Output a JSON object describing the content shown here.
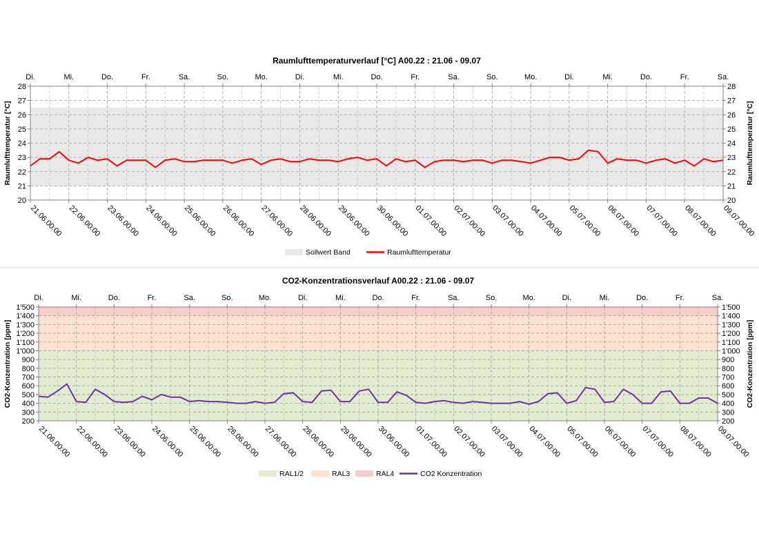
{
  "charts": [
    {
      "title": "Raumlufttemperaturverlauf [°C] A00.22 : 21.06 - 09.07",
      "ylabel": "Raumlufttemperatur [°C]",
      "weekday_labels": [
        "Di.",
        "Mi.",
        "Do.",
        "Fr.",
        "Sa.",
        "So.",
        "Mo.",
        "Di.",
        "Mi.",
        "Do.",
        "Fr.",
        "Sa.",
        "So.",
        "Mo.",
        "Di.",
        "Mi.",
        "Do.",
        "Fr.",
        "Sa."
      ],
      "y_tick_labels": [
        "20",
        "21",
        "22",
        "23",
        "24",
        "25",
        "26",
        "27",
        "28"
      ],
      "x_tick_labels": [
        "21.06.00:00",
        "22.06.00:00",
        "23.06.00:00",
        "24.06.00:00",
        "25.06.00:00",
        "26.06.00:00",
        "27.06.00:00",
        "28.06.00:00",
        "29.06.00:00",
        "30.06.00:00",
        "01.07.00:00",
        "02.07.00:00",
        "03.07.00:00",
        "04.07.00:00",
        "05.07.00:00",
        "06.07.00:00",
        "07.07.00:00",
        "08.07.00:00",
        "09.07.00:00"
      ],
      "legend": [
        "Sollwert Band",
        "Raumlufttemperatur"
      ],
      "colors": {
        "band": "#e9e9e9",
        "line": "#ff0000"
      }
    },
    {
      "title": "CO2-Konzentrationsverlauf A00.22 : 21.06 - 09.07",
      "ylabel": "CO2-Konzentration [ppm]",
      "weekday_labels": [
        "Di.",
        "Mi.",
        "Do.",
        "Fr.",
        "Sa.",
        "So.",
        "Mo.",
        "Di.",
        "Mi.",
        "Do.",
        "Fr.",
        "Sa.",
        "So.",
        "Mo.",
        "Di.",
        "Mi.",
        "Do.",
        "Fr.",
        "Sa."
      ],
      "y_tick_labels": [
        "200",
        "300",
        "400",
        "500",
        "600",
        "700",
        "800",
        "900",
        "1'000",
        "1'100",
        "1'200",
        "1'300",
        "1'400",
        "1'500"
      ],
      "x_tick_labels": [
        "21.06.00:00",
        "22.06.00:00",
        "23.06.00:00",
        "24.06.00:00",
        "25.06.00:00",
        "26.06.00:00",
        "27.06.00:00",
        "28.06.00:00",
        "29.06.00:00",
        "30.06.00:00",
        "01.07.00:00",
        "02.07.00:00",
        "03.07.00:00",
        "04.07.00:00",
        "05.07.00:00",
        "06.07.00:00",
        "07.07.00:00",
        "08.07.00:00",
        "09.07.00:00"
      ],
      "legend": [
        "RAL1/2",
        "RAL3",
        "RAL4",
        "CO2 Konzentration"
      ],
      "colors": {
        "ral12": "#e2ecd1",
        "ral3": "#fde3cf",
        "ral4": "#f9cccc",
        "line": "#7030a0"
      }
    }
  ],
  "chart_data": [
    {
      "type": "line",
      "title": "Raumlufttemperaturverlauf [°C] A00.22 : 21.06 - 09.07",
      "ylabel": "Raumlufttemperatur [°C]",
      "ylim": [
        20,
        28
      ],
      "xlim": [
        "21.06.00:00",
        "09.07.00:00"
      ],
      "grid": true,
      "legend_position": "bottom",
      "bands": [
        {
          "name": "Sollwert Band",
          "from": 21,
          "to": 26.5
        }
      ],
      "series": [
        {
          "name": "Raumlufttemperatur",
          "x": [
            "21.06.00:00",
            "21.06.06:00",
            "21.06.12:00",
            "21.06.18:00",
            "22.06.00:00",
            "22.06.06:00",
            "22.06.12:00",
            "22.06.18:00",
            "23.06.00:00",
            "23.06.06:00",
            "23.06.12:00",
            "23.06.18:00",
            "24.06.00:00",
            "24.06.06:00",
            "24.06.12:00",
            "24.06.18:00",
            "25.06.00:00",
            "25.06.06:00",
            "25.06.12:00",
            "25.06.18:00",
            "26.06.00:00",
            "26.06.06:00",
            "26.06.12:00",
            "26.06.18:00",
            "27.06.00:00",
            "27.06.06:00",
            "27.06.12:00",
            "27.06.18:00",
            "28.06.00:00",
            "28.06.06:00",
            "28.06.12:00",
            "28.06.18:00",
            "29.06.00:00",
            "29.06.06:00",
            "29.06.12:00",
            "29.06.18:00",
            "30.06.00:00",
            "30.06.06:00",
            "30.06.12:00",
            "30.06.18:00",
            "01.07.00:00",
            "01.07.06:00",
            "01.07.12:00",
            "01.07.18:00",
            "02.07.00:00",
            "02.07.06:00",
            "02.07.12:00",
            "02.07.18:00",
            "03.07.00:00",
            "03.07.06:00",
            "03.07.12:00",
            "03.07.18:00",
            "04.07.00:00",
            "04.07.06:00",
            "04.07.12:00",
            "04.07.18:00",
            "05.07.00:00",
            "05.07.06:00",
            "05.07.12:00",
            "05.07.18:00",
            "06.07.00:00",
            "06.07.06:00",
            "06.07.12:00",
            "06.07.18:00",
            "07.07.00:00",
            "07.07.06:00",
            "07.07.12:00",
            "07.07.18:00",
            "08.07.00:00",
            "08.07.06:00",
            "08.07.12:00",
            "08.07.18:00",
            "09.07.00:00"
          ],
          "y": [
            22.4,
            22.9,
            22.9,
            23.4,
            22.8,
            22.6,
            23.0,
            22.8,
            22.9,
            22.4,
            22.8,
            22.8,
            22.8,
            22.3,
            22.8,
            22.9,
            22.7,
            22.7,
            22.8,
            22.8,
            22.8,
            22.6,
            22.8,
            22.9,
            22.5,
            22.8,
            22.9,
            22.7,
            22.7,
            22.9,
            22.8,
            22.8,
            22.7,
            22.9,
            23.0,
            22.8,
            22.9,
            22.4,
            22.9,
            22.7,
            22.8,
            22.3,
            22.7,
            22.8,
            22.8,
            22.7,
            22.8,
            22.8,
            22.6,
            22.8,
            22.8,
            22.7,
            22.6,
            22.8,
            23.0,
            23.0,
            22.8,
            22.9,
            23.5,
            23.4,
            22.6,
            22.9,
            22.8,
            22.8,
            22.6,
            22.8,
            22.9,
            22.6,
            22.8,
            22.4,
            22.9,
            22.7,
            22.8
          ]
        }
      ]
    },
    {
      "type": "line",
      "title": "CO2-Konzentrationsverlauf A00.22 : 21.06 - 09.07",
      "ylabel": "CO2-Konzentration [ppm]",
      "ylim": [
        200,
        1500
      ],
      "xlim": [
        "21.06.00:00",
        "09.07.00:00"
      ],
      "grid": true,
      "legend_position": "bottom",
      "bands": [
        {
          "name": "RAL1/2",
          "from": 200,
          "to": 1000
        },
        {
          "name": "RAL3",
          "from": 1000,
          "to": 1400
        },
        {
          "name": "RAL4",
          "from": 1400,
          "to": 1500
        }
      ],
      "series": [
        {
          "name": "CO2 Konzentration",
          "x": [
            "21.06.00:00",
            "21.06.06:00",
            "21.06.12:00",
            "21.06.18:00",
            "22.06.00:00",
            "22.06.06:00",
            "22.06.12:00",
            "22.06.18:00",
            "23.06.00:00",
            "23.06.06:00",
            "23.06.12:00",
            "23.06.18:00",
            "24.06.00:00",
            "24.06.06:00",
            "24.06.12:00",
            "24.06.18:00",
            "25.06.00:00",
            "25.06.06:00",
            "25.06.12:00",
            "25.06.18:00",
            "26.06.00:00",
            "26.06.06:00",
            "26.06.12:00",
            "26.06.18:00",
            "27.06.00:00",
            "27.06.06:00",
            "27.06.12:00",
            "27.06.18:00",
            "28.06.00:00",
            "28.06.06:00",
            "28.06.12:00",
            "28.06.18:00",
            "29.06.00:00",
            "29.06.06:00",
            "29.06.12:00",
            "29.06.18:00",
            "30.06.00:00",
            "30.06.06:00",
            "30.06.12:00",
            "30.06.18:00",
            "01.07.00:00",
            "01.07.06:00",
            "01.07.12:00",
            "01.07.18:00",
            "02.07.00:00",
            "02.07.06:00",
            "02.07.12:00",
            "02.07.18:00",
            "03.07.00:00",
            "03.07.06:00",
            "03.07.12:00",
            "03.07.18:00",
            "04.07.00:00",
            "04.07.06:00",
            "04.07.12:00",
            "04.07.18:00",
            "05.07.00:00",
            "05.07.06:00",
            "05.07.12:00",
            "05.07.18:00",
            "06.07.00:00",
            "06.07.06:00",
            "06.07.12:00",
            "06.07.18:00",
            "07.07.00:00",
            "07.07.06:00",
            "07.07.12:00",
            "07.07.18:00",
            "08.07.00:00",
            "08.07.06:00",
            "08.07.12:00",
            "08.07.18:00",
            "09.07.00:00"
          ],
          "y": [
            480,
            470,
            540,
            620,
            420,
            410,
            560,
            500,
            420,
            410,
            420,
            480,
            440,
            500,
            470,
            470,
            420,
            430,
            420,
            420,
            410,
            400,
            400,
            420,
            400,
            410,
            510,
            520,
            420,
            410,
            540,
            550,
            420,
            420,
            540,
            560,
            410,
            410,
            530,
            490,
            410,
            400,
            420,
            430,
            410,
            400,
            420,
            410,
            400,
            400,
            400,
            420,
            390,
            420,
            510,
            520,
            400,
            430,
            580,
            560,
            410,
            420,
            560,
            500,
            400,
            400,
            530,
            540,
            400,
            400,
            460,
            460,
            400
          ]
        }
      ]
    }
  ]
}
